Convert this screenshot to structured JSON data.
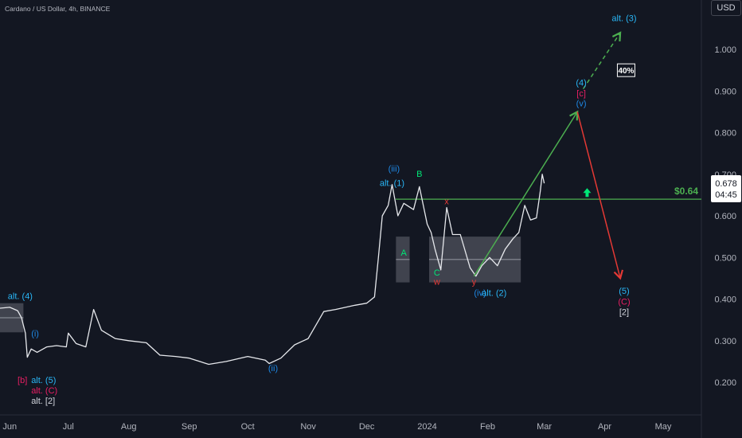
{
  "header": {
    "title": "Cardano / US Dollar, 4h, BINANCE",
    "currency": "USD"
  },
  "chart_data": {
    "type": "line",
    "symbol": "ADAUSD",
    "y_axis": {
      "ticks": [
        "1.000",
        "0.900",
        "0.800",
        "0.700",
        "0.600",
        "0.500",
        "0.400",
        "0.300",
        "0.200"
      ],
      "tick_values": [
        1.0,
        0.9,
        0.8,
        0.7,
        0.6,
        0.5,
        0.4,
        0.3,
        0.2
      ],
      "range": [
        0.1,
        1.135
      ]
    },
    "x_axis": {
      "ticks": [
        "Jun",
        "Jul",
        "Aug",
        "Sep",
        "Oct",
        "Nov",
        "Dec",
        "2024",
        "Feb",
        "Mar",
        "Apr",
        "May"
      ]
    },
    "current_price": {
      "value": "0.678",
      "countdown": "04:45"
    },
    "price_level": {
      "label": "$0.64",
      "value": 0.64
    },
    "series": [
      {
        "points": [
          [
            "2023-05-27",
            0.378
          ],
          [
            "2023-06-01",
            0.38
          ],
          [
            "2023-06-05",
            0.372
          ],
          [
            "2023-06-07",
            0.355
          ],
          [
            "2023-06-09",
            0.318
          ],
          [
            "2023-06-10",
            0.26
          ],
          [
            "2023-06-12",
            0.28
          ],
          [
            "2023-06-15",
            0.272
          ],
          [
            "2023-06-20",
            0.285
          ],
          [
            "2023-06-25",
            0.288
          ],
          [
            "2023-06-30",
            0.285
          ],
          [
            "2023-07-01",
            0.318
          ],
          [
            "2023-07-05",
            0.293
          ],
          [
            "2023-07-10",
            0.285
          ],
          [
            "2023-07-14",
            0.375
          ],
          [
            "2023-07-18",
            0.325
          ],
          [
            "2023-07-25",
            0.305
          ],
          [
            "2023-08-01",
            0.3
          ],
          [
            "2023-08-10",
            0.295
          ],
          [
            "2023-08-17",
            0.265
          ],
          [
            "2023-08-25",
            0.262
          ],
          [
            "2023-09-01",
            0.258
          ],
          [
            "2023-09-11",
            0.243
          ],
          [
            "2023-09-20",
            0.25
          ],
          [
            "2023-10-01",
            0.262
          ],
          [
            "2023-10-10",
            0.253
          ],
          [
            "2023-10-12",
            0.245
          ],
          [
            "2023-10-18",
            0.258
          ],
          [
            "2023-10-25",
            0.29
          ],
          [
            "2023-11-01",
            0.305
          ],
          [
            "2023-11-09",
            0.37
          ],
          [
            "2023-11-15",
            0.375
          ],
          [
            "2023-11-25",
            0.385
          ],
          [
            "2023-12-01",
            0.39
          ],
          [
            "2023-12-05",
            0.405
          ],
          [
            "2023-12-07",
            0.5
          ],
          [
            "2023-12-09",
            0.6
          ],
          [
            "2023-12-12",
            0.625
          ],
          [
            "2023-12-14",
            0.675
          ],
          [
            "2023-12-17",
            0.6
          ],
          [
            "2023-12-20",
            0.63
          ],
          [
            "2023-12-25",
            0.615
          ],
          [
            "2023-12-28",
            0.67
          ],
          [
            "2024-01-01",
            0.58
          ],
          [
            "2024-01-03",
            0.56
          ],
          [
            "2024-01-05",
            0.52
          ],
          [
            "2024-01-08",
            0.47
          ],
          [
            "2024-01-11",
            0.62
          ],
          [
            "2024-01-14",
            0.555
          ],
          [
            "2024-01-18",
            0.555
          ],
          [
            "2024-01-23",
            0.475
          ],
          [
            "2024-01-26",
            0.455
          ],
          [
            "2024-01-29",
            0.48
          ],
          [
            "2024-02-02",
            0.5
          ],
          [
            "2024-02-06",
            0.48
          ],
          [
            "2024-02-10",
            0.52
          ],
          [
            "2024-02-14",
            0.545
          ],
          [
            "2024-02-17",
            0.56
          ],
          [
            "2024-02-20",
            0.625
          ],
          [
            "2024-02-23",
            0.59
          ],
          [
            "2024-02-26",
            0.595
          ],
          [
            "2024-02-28",
            0.66
          ],
          [
            "2024-02-29",
            0.7
          ],
          [
            "2024-03-01",
            0.678
          ]
        ]
      }
    ],
    "shaded_boxes": [
      {
        "x1": "2023-05-27",
        "x2": "2023-06-08",
        "y1": 0.32,
        "y2": 0.39
      },
      {
        "x1": "2023-12-16",
        "x2": "2023-12-23",
        "y1": 0.44,
        "y2": 0.55
      },
      {
        "x1": "2024-01-02",
        "x2": "2024-02-18",
        "y1": 0.44,
        "y2": 0.55
      }
    ],
    "projections": [
      {
        "from": [
          "2024-01-25",
          0.455
        ],
        "to": [
          "2024-03-18",
          0.85
        ],
        "color": "#4caf50",
        "dashed": false,
        "arrow": true
      },
      {
        "from": [
          "2024-03-21",
          0.905
        ],
        "to": [
          "2024-04-09",
          1.04
        ],
        "color": "#4caf50",
        "dashed": true,
        "arrow": true
      },
      {
        "from": [
          "2024-03-18",
          0.85
        ],
        "to": [
          "2024-04-09",
          0.45
        ],
        "color": "#e53935",
        "dashed": false,
        "arrow": true
      }
    ],
    "annotations": [
      {
        "text": "alt. (4)",
        "x": "2023-05-31",
        "y": 0.4,
        "color": "#29b6f6",
        "anchor": "start"
      },
      {
        "text": "(i)",
        "x": "2023-06-12",
        "y": 0.31,
        "color": "#1e88e5",
        "anchor": "start"
      },
      {
        "text": "[b]",
        "x": "2023-06-05",
        "y": 0.198,
        "color": "#e91e63",
        "anchor": "start"
      },
      {
        "text": "alt. (5)",
        "x": "2023-06-12",
        "y": 0.198,
        "color": "#29b6f6",
        "anchor": "start"
      },
      {
        "text": "alt. (C)",
        "x": "2023-06-12",
        "y": 0.173,
        "color": "#e91e63",
        "anchor": "start"
      },
      {
        "text": "alt. [2]",
        "x": "2023-06-12",
        "y": 0.148,
        "color": "#d1d4dc",
        "anchor": "start"
      },
      {
        "text": "(ii)",
        "x": "2023-10-14",
        "y": 0.227,
        "color": "#1e88e5",
        "anchor": "middle"
      },
      {
        "text": "(iii)",
        "x": "2023-12-15",
        "y": 0.706,
        "color": "#1e88e5",
        "anchor": "middle"
      },
      {
        "text": "alt. (1)",
        "x": "2023-12-14",
        "y": 0.672,
        "color": "#29b6f6",
        "anchor": "middle"
      },
      {
        "text": "B",
        "x": "2023-12-28",
        "y": 0.694,
        "color": "#00e676",
        "anchor": "middle"
      },
      {
        "text": "A",
        "x": "2023-12-20",
        "y": 0.504,
        "color": "#00e676",
        "anchor": "middle"
      },
      {
        "text": "x",
        "x": "2024-01-11",
        "y": 0.628,
        "color": "#e53935",
        "anchor": "middle"
      },
      {
        "text": "C",
        "x": "2024-01-06",
        "y": 0.456,
        "color": "#00e676",
        "anchor": "middle"
      },
      {
        "text": "w",
        "x": "2024-01-06",
        "y": 0.434,
        "color": "#e53935",
        "anchor": "middle"
      },
      {
        "text": "y",
        "x": "2024-01-25",
        "y": 0.434,
        "color": "#e53935",
        "anchor": "middle"
      },
      {
        "text": "(iv)",
        "x": "2024-01-25",
        "y": 0.408,
        "color": "#1e88e5",
        "anchor": "start"
      },
      {
        "text": "alt. (2)",
        "x": "2024-01-29",
        "y": 0.408,
        "color": "#29b6f6",
        "anchor": "start"
      },
      {
        "text": "(4)",
        "x": "2024-03-20",
        "y": 0.913,
        "color": "#29b6f6",
        "anchor": "middle"
      },
      {
        "text": "[c]",
        "x": "2024-03-20",
        "y": 0.887,
        "color": "#e91e63",
        "anchor": "middle"
      },
      {
        "text": "(v)",
        "x": "2024-03-20",
        "y": 0.863,
        "color": "#1e88e5",
        "anchor": "middle"
      },
      {
        "text": "alt. (3)",
        "x": "2024-04-11",
        "y": 1.068,
        "color": "#29b6f6",
        "anchor": "middle"
      },
      {
        "text": "(5)",
        "x": "2024-04-11",
        "y": 0.412,
        "color": "#29b6f6",
        "anchor": "middle"
      },
      {
        "text": "(C)",
        "x": "2024-04-11",
        "y": 0.387,
        "color": "#e91e63",
        "anchor": "middle"
      },
      {
        "text": "[2]",
        "x": "2024-04-11",
        "y": 0.362,
        "color": "#d1d4dc",
        "anchor": "middle"
      }
    ],
    "badge": {
      "text": "40%",
      "x": "2024-04-12",
      "y": 0.948
    },
    "signal_arrow": {
      "direction": "up",
      "x": "2024-03-23",
      "y": 0.655,
      "color": "#00e676"
    },
    "grid": false
  }
}
